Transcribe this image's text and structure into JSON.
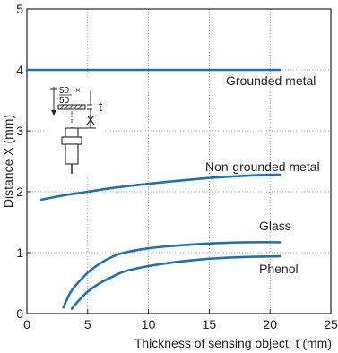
{
  "chart_data": {
    "type": "line",
    "title": "",
    "xlabel": "Thickness of sensing object: t (mm)",
    "ylabel": "Distance X (mm)",
    "xlim": [
      0,
      25
    ],
    "ylim": [
      0,
      5
    ],
    "xticks": [
      "0",
      "5",
      "10",
      "15",
      "20",
      "25"
    ],
    "yticks": [
      "0",
      "1",
      "2",
      "3",
      "4",
      "5"
    ],
    "grid": true,
    "line_color": "#1f6fb5",
    "series": [
      {
        "name": "Grounded metal",
        "x": [
          0,
          5,
          10,
          15,
          20,
          20.8
        ],
        "y": [
          4.0,
          4.0,
          4.0,
          4.0,
          4.0,
          4.0
        ]
      },
      {
        "name": "Non-grounded metal",
        "x": [
          1.2,
          3,
          5,
          7,
          10,
          13,
          16,
          19,
          20.8
        ],
        "y": [
          1.87,
          1.94,
          2.0,
          2.06,
          2.13,
          2.19,
          2.24,
          2.27,
          2.28
        ]
      },
      {
        "name": "Glass",
        "x": [
          3.0,
          3.5,
          4,
          5,
          6,
          7,
          8,
          10,
          12,
          15,
          18,
          20.8
        ],
        "y": [
          0.1,
          0.32,
          0.46,
          0.67,
          0.82,
          0.93,
          1.0,
          1.07,
          1.11,
          1.15,
          1.17,
          1.17
        ]
      },
      {
        "name": "Phenol",
        "x": [
          3.7,
          4.2,
          5,
          6,
          7,
          8,
          10,
          12,
          15,
          18,
          20.8
        ],
        "y": [
          0.08,
          0.2,
          0.36,
          0.5,
          0.6,
          0.69,
          0.78,
          0.84,
          0.9,
          0.93,
          0.94
        ]
      }
    ],
    "inset": {
      "dim_top": "50",
      "dim_bottom": "50",
      "dim_x": "×",
      "t_label": "t",
      "x_label": "X"
    }
  }
}
